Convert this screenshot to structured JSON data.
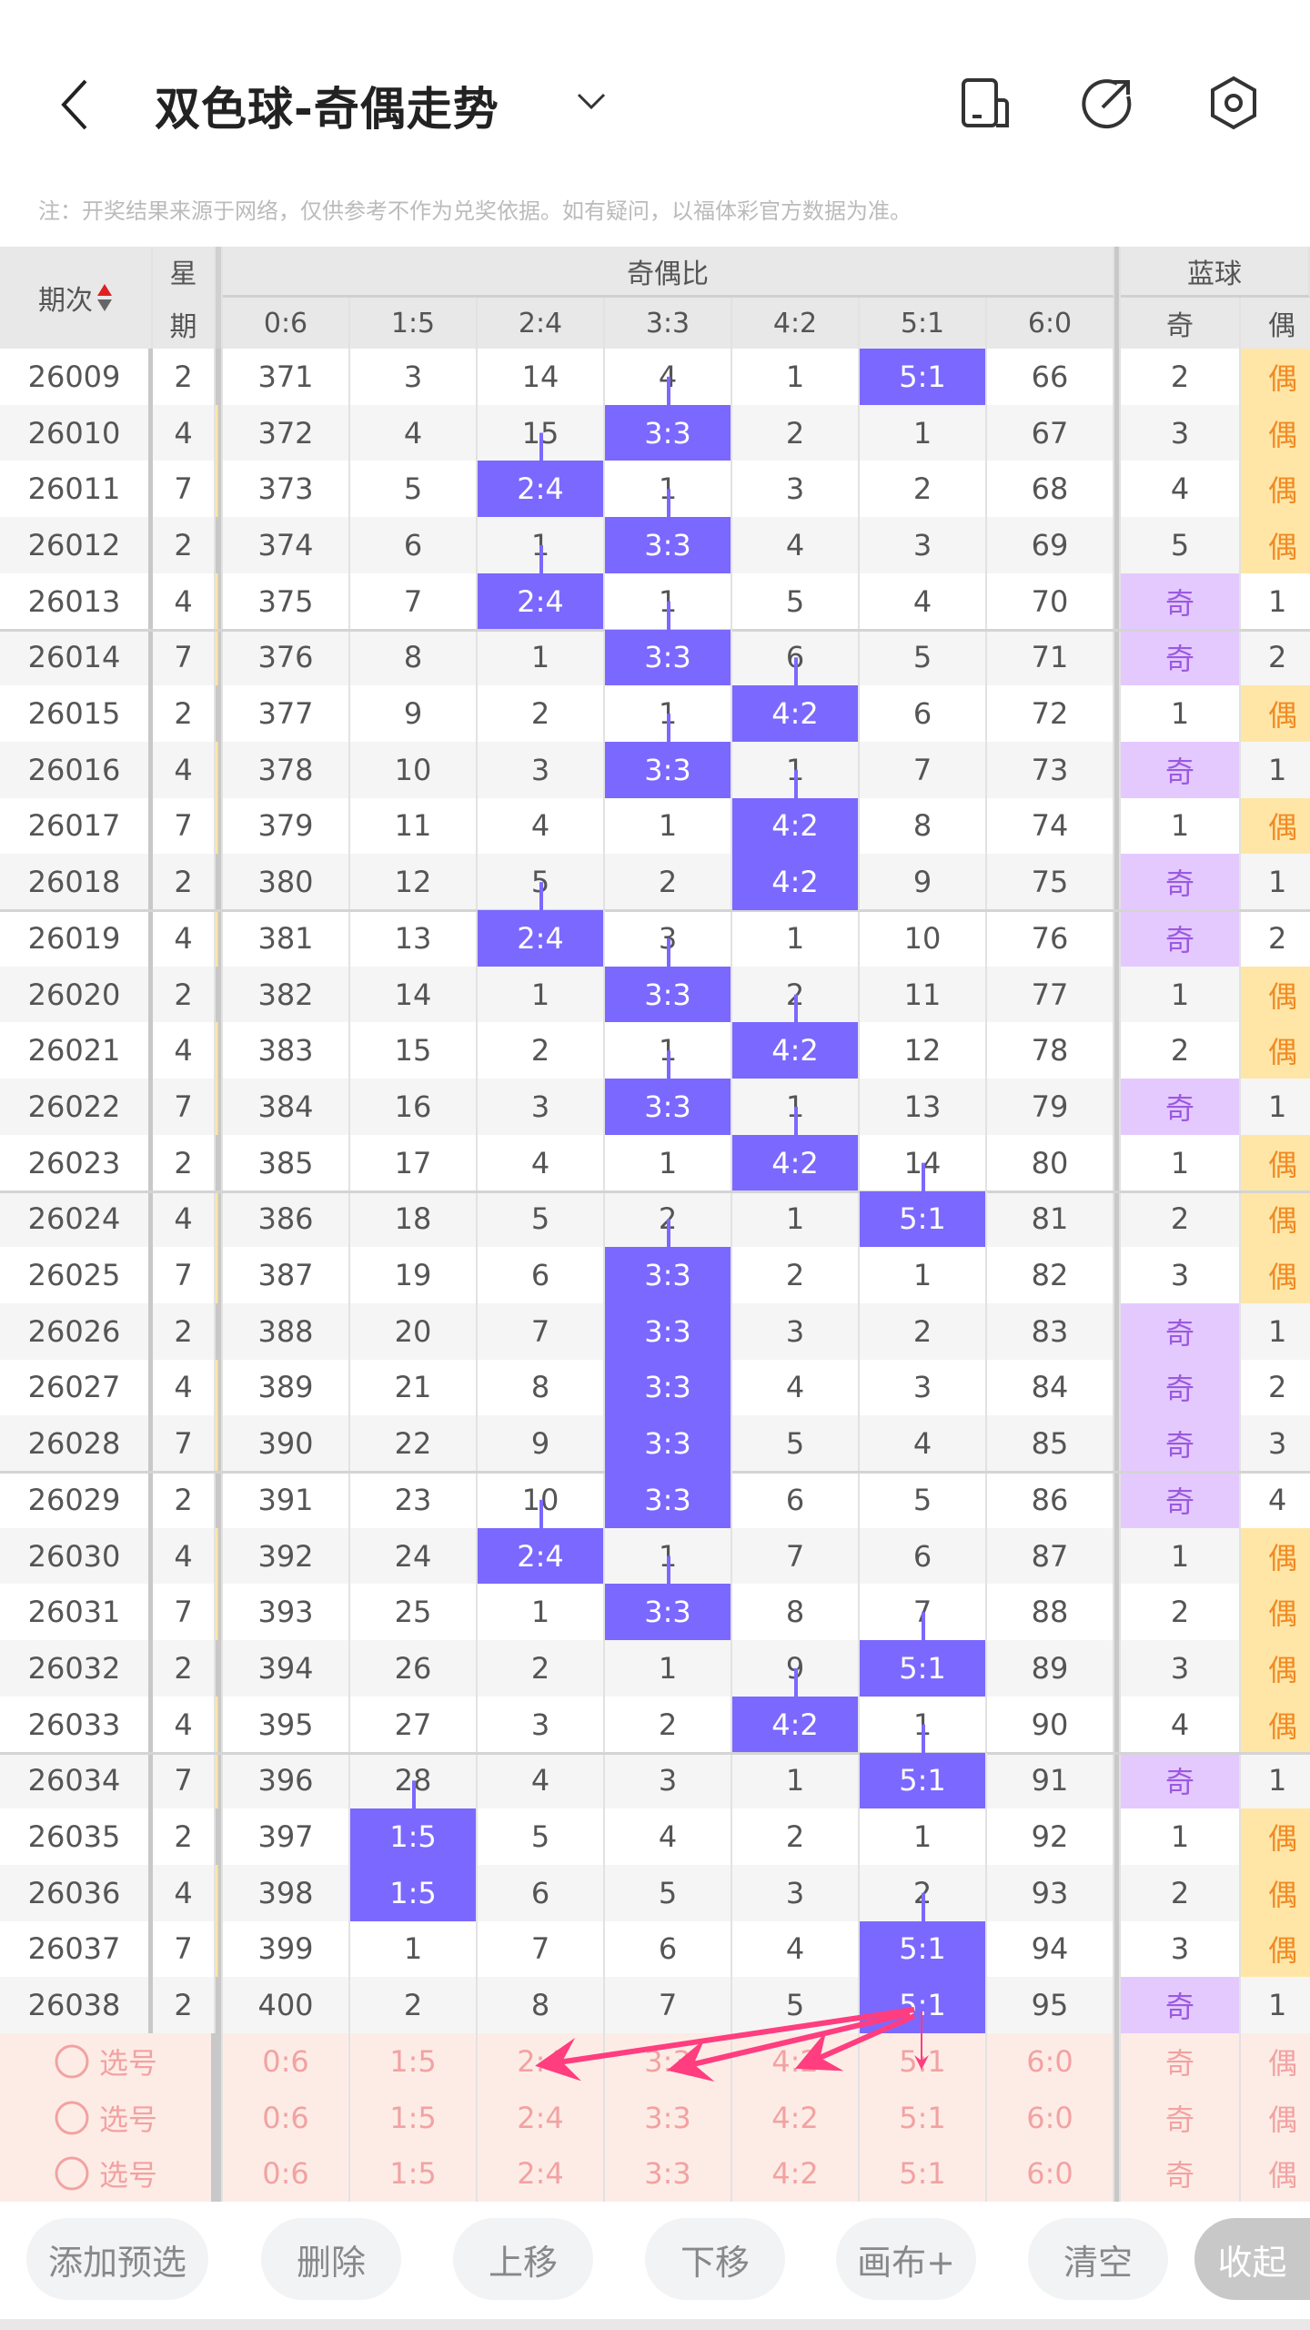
{
  "header": {
    "title": "双色球-奇偶走势",
    "icons": [
      "back-icon",
      "chevron-down-icon",
      "device-icon",
      "share-icon",
      "settings-icon"
    ]
  },
  "note": "注：开奖结果来源于网络，仅供参考不作为兑奖依据。如有疑问，以福体彩官方数据为准。",
  "table": {
    "col_period": "期次",
    "col_week_top": "星",
    "col_week_bottom": "期",
    "group_ratio": "奇偶比",
    "group_blue": "蓝球",
    "ratio_cols": [
      "0:6",
      "1:5",
      "2:4",
      "3:3",
      "4:2",
      "5:1",
      "6:0"
    ],
    "blue_cols": [
      "奇",
      "偶"
    ],
    "rows": [
      {
        "period": "26009",
        "week": "2",
        "ratio": [
          "371",
          "3",
          "14",
          "4",
          "1",
          "5:1",
          "66"
        ],
        "hit": 5,
        "blue": [
          "2",
          "偶"
        ],
        "bhit": 1
      },
      {
        "period": "26010",
        "week": "4",
        "ratio": [
          "372",
          "4",
          "15",
          "3:3",
          "2",
          "1",
          "67"
        ],
        "hit": 3,
        "blue": [
          "3",
          "偶"
        ],
        "bhit": 1
      },
      {
        "period": "26011",
        "week": "7",
        "ratio": [
          "373",
          "5",
          "2:4",
          "1",
          "3",
          "2",
          "68"
        ],
        "hit": 2,
        "blue": [
          "4",
          "偶"
        ],
        "bhit": 1
      },
      {
        "period": "26012",
        "week": "2",
        "ratio": [
          "374",
          "6",
          "1",
          "3:3",
          "4",
          "3",
          "69"
        ],
        "hit": 3,
        "blue": [
          "5",
          "偶"
        ],
        "bhit": 1
      },
      {
        "period": "26013",
        "week": "4",
        "ratio": [
          "375",
          "7",
          "2:4",
          "1",
          "5",
          "4",
          "70"
        ],
        "hit": 2,
        "blue": [
          "奇",
          "1"
        ],
        "bhit": 0
      },
      {
        "period": "26014",
        "week": "7",
        "ratio": [
          "376",
          "8",
          "1",
          "3:3",
          "6",
          "5",
          "71"
        ],
        "hit": 3,
        "blue": [
          "奇",
          "2"
        ],
        "bhit": 0
      },
      {
        "period": "26015",
        "week": "2",
        "ratio": [
          "377",
          "9",
          "2",
          "1",
          "4:2",
          "6",
          "72"
        ],
        "hit": 4,
        "blue": [
          "1",
          "偶"
        ],
        "bhit": 1
      },
      {
        "period": "26016",
        "week": "4",
        "ratio": [
          "378",
          "10",
          "3",
          "3:3",
          "1",
          "7",
          "73"
        ],
        "hit": 3,
        "blue": [
          "奇",
          "1"
        ],
        "bhit": 0
      },
      {
        "period": "26017",
        "week": "7",
        "ratio": [
          "379",
          "11",
          "4",
          "1",
          "4:2",
          "8",
          "74"
        ],
        "hit": 4,
        "blue": [
          "1",
          "偶"
        ],
        "bhit": 1
      },
      {
        "period": "26018",
        "week": "2",
        "ratio": [
          "380",
          "12",
          "5",
          "2",
          "4:2",
          "9",
          "75"
        ],
        "hit": 4,
        "blue": [
          "奇",
          "1"
        ],
        "bhit": 0
      },
      {
        "period": "26019",
        "week": "4",
        "ratio": [
          "381",
          "13",
          "2:4",
          "3",
          "1",
          "10",
          "76"
        ],
        "hit": 2,
        "blue": [
          "奇",
          "2"
        ],
        "bhit": 0
      },
      {
        "period": "26020",
        "week": "2",
        "ratio": [
          "382",
          "14",
          "1",
          "3:3",
          "2",
          "11",
          "77"
        ],
        "hit": 3,
        "blue": [
          "1",
          "偶"
        ],
        "bhit": 1
      },
      {
        "period": "26021",
        "week": "4",
        "ratio": [
          "383",
          "15",
          "2",
          "1",
          "4:2",
          "12",
          "78"
        ],
        "hit": 4,
        "blue": [
          "2",
          "偶"
        ],
        "bhit": 1
      },
      {
        "period": "26022",
        "week": "7",
        "ratio": [
          "384",
          "16",
          "3",
          "3:3",
          "1",
          "13",
          "79"
        ],
        "hit": 3,
        "blue": [
          "奇",
          "1"
        ],
        "bhit": 0
      },
      {
        "period": "26023",
        "week": "2",
        "ratio": [
          "385",
          "17",
          "4",
          "1",
          "4:2",
          "14",
          "80"
        ],
        "hit": 4,
        "blue": [
          "1",
          "偶"
        ],
        "bhit": 1
      },
      {
        "period": "26024",
        "week": "4",
        "ratio": [
          "386",
          "18",
          "5",
          "2",
          "1",
          "5:1",
          "81"
        ],
        "hit": 5,
        "blue": [
          "2",
          "偶"
        ],
        "bhit": 1
      },
      {
        "period": "26025",
        "week": "7",
        "ratio": [
          "387",
          "19",
          "6",
          "3:3",
          "2",
          "1",
          "82"
        ],
        "hit": 3,
        "blue": [
          "3",
          "偶"
        ],
        "bhit": 1
      },
      {
        "period": "26026",
        "week": "2",
        "ratio": [
          "388",
          "20",
          "7",
          "3:3",
          "3",
          "2",
          "83"
        ],
        "hit": 3,
        "blue": [
          "奇",
          "1"
        ],
        "bhit": 0
      },
      {
        "period": "26027",
        "week": "4",
        "ratio": [
          "389",
          "21",
          "8",
          "3:3",
          "4",
          "3",
          "84"
        ],
        "hit": 3,
        "blue": [
          "奇",
          "2"
        ],
        "bhit": 0
      },
      {
        "period": "26028",
        "week": "7",
        "ratio": [
          "390",
          "22",
          "9",
          "3:3",
          "5",
          "4",
          "85"
        ],
        "hit": 3,
        "blue": [
          "奇",
          "3"
        ],
        "bhit": 0
      },
      {
        "period": "26029",
        "week": "2",
        "ratio": [
          "391",
          "23",
          "10",
          "3:3",
          "6",
          "5",
          "86"
        ],
        "hit": 3,
        "blue": [
          "奇",
          "4"
        ],
        "bhit": 0
      },
      {
        "period": "26030",
        "week": "4",
        "ratio": [
          "392",
          "24",
          "2:4",
          "1",
          "7",
          "6",
          "87"
        ],
        "hit": 2,
        "blue": [
          "1",
          "偶"
        ],
        "bhit": 1
      },
      {
        "period": "26031",
        "week": "7",
        "ratio": [
          "393",
          "25",
          "1",
          "3:3",
          "8",
          "7",
          "88"
        ],
        "hit": 3,
        "blue": [
          "2",
          "偶"
        ],
        "bhit": 1
      },
      {
        "period": "26032",
        "week": "2",
        "ratio": [
          "394",
          "26",
          "2",
          "1",
          "9",
          "5:1",
          "89"
        ],
        "hit": 5,
        "blue": [
          "3",
          "偶"
        ],
        "bhit": 1
      },
      {
        "period": "26033",
        "week": "4",
        "ratio": [
          "395",
          "27",
          "3",
          "2",
          "4:2",
          "1",
          "90"
        ],
        "hit": 4,
        "blue": [
          "4",
          "偶"
        ],
        "bhit": 1
      },
      {
        "period": "26034",
        "week": "7",
        "ratio": [
          "396",
          "28",
          "4",
          "3",
          "1",
          "5:1",
          "91"
        ],
        "hit": 5,
        "blue": [
          "奇",
          "1"
        ],
        "bhit": 0
      },
      {
        "period": "26035",
        "week": "2",
        "ratio": [
          "397",
          "1:5",
          "5",
          "4",
          "2",
          "1",
          "92"
        ],
        "hit": 1,
        "blue": [
          "1",
          "偶"
        ],
        "bhit": 1
      },
      {
        "period": "26036",
        "week": "4",
        "ratio": [
          "398",
          "1:5",
          "6",
          "5",
          "3",
          "2",
          "93"
        ],
        "hit": 1,
        "blue": [
          "2",
          "偶"
        ],
        "bhit": 1
      },
      {
        "period": "26037",
        "week": "7",
        "ratio": [
          "399",
          "1",
          "7",
          "6",
          "4",
          "5:1",
          "94"
        ],
        "hit": 5,
        "blue": [
          "3",
          "偶"
        ],
        "bhit": 1
      },
      {
        "period": "26038",
        "week": "2",
        "ratio": [
          "400",
          "2",
          "8",
          "7",
          "5",
          "5:1",
          "95"
        ],
        "hit": 5,
        "blue": [
          "奇",
          "1"
        ],
        "bhit": 0
      }
    ],
    "select_label": "选号",
    "select_rows": 3
  },
  "buttons": [
    "添加预选",
    "删除",
    "上移",
    "下移",
    "画布+",
    "清空",
    "收起"
  ],
  "colors": {
    "highlight": "#7b68ff",
    "odd_bg": "#e4c9ff",
    "even_bg": "#ffe6a6",
    "select_bg": "#fdece6",
    "annotation": "#ff3d7f"
  }
}
